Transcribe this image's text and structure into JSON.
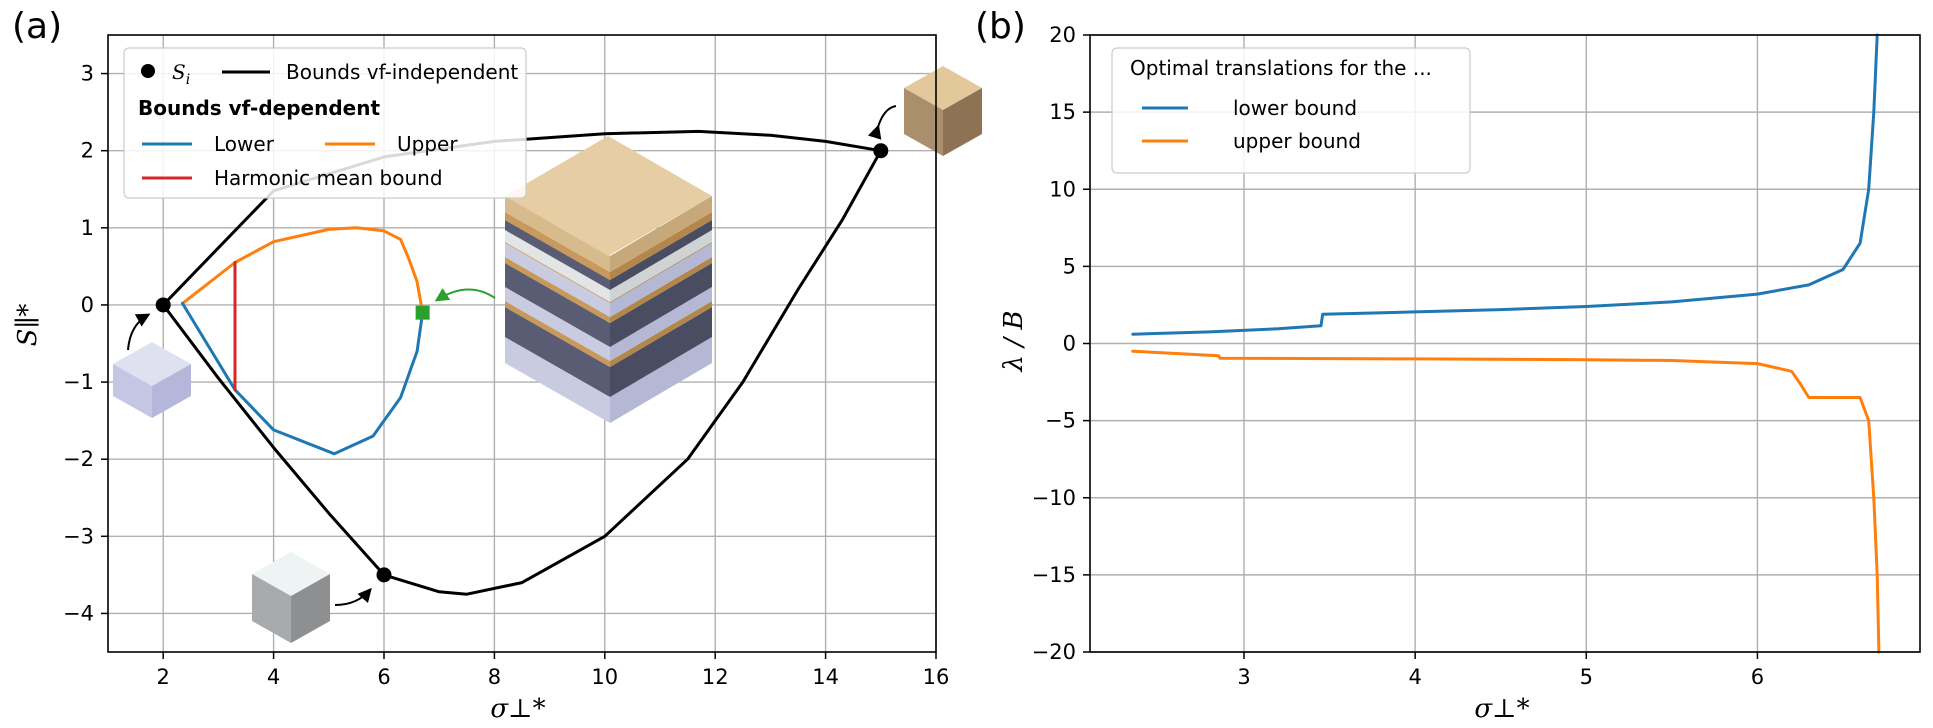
{
  "chart_data": [
    {
      "panel": "(a)",
      "type": "line",
      "xlabel": "σ⊥*",
      "ylabel": "S∥*",
      "xlim": [
        1,
        16
      ],
      "ylim": [
        -4.5,
        3.5
      ],
      "xticks": [
        2,
        4,
        6,
        8,
        10,
        12,
        14,
        16
      ],
      "yticks": [
        3,
        2,
        1,
        0,
        -1,
        -2,
        -3,
        -4
      ],
      "grid": true,
      "legend_position": "top-left",
      "legend": {
        "point_label": "Si",
        "independent_label": "Bounds vf-independent",
        "dependent_heading": "Bounds vf-dependent",
        "lower_label": "Lower",
        "upper_label": "Upper",
        "harmonic_label": "Harmonic mean bound"
      },
      "colors": {
        "independent": "#000000",
        "lower": "#1f77b4",
        "upper": "#ff7f0e",
        "harmonic": "#d62728",
        "marker": "#2ca02c"
      },
      "points": [
        {
          "x": 2,
          "y": 0
        },
        {
          "x": 6,
          "y": -3.5
        },
        {
          "x": 15,
          "y": 2
        }
      ],
      "series": [
        {
          "role": "independent",
          "x": [
            2,
            4,
            6,
            8,
            10,
            11.7,
            13,
            14,
            15
          ],
          "y": [
            0,
            1.48,
            1.92,
            2.12,
            2.22,
            2.25,
            2.2,
            2.12,
            2
          ]
        },
        {
          "role": "independent",
          "x": [
            2,
            3,
            4,
            5,
            6
          ],
          "y": [
            0,
            -0.95,
            -1.85,
            -2.7,
            -3.5
          ]
        },
        {
          "role": "independent",
          "x": [
            6,
            7,
            7.5,
            8.5,
            10,
            11.5,
            12.5,
            13.5,
            14.3,
            15
          ],
          "y": [
            -3.5,
            -3.72,
            -3.75,
            -3.6,
            -3.0,
            -2.0,
            -1.0,
            0.2,
            1.1,
            2
          ]
        },
        {
          "role": "upper",
          "x": [
            2.35,
            3.3,
            4,
            5,
            5.5,
            6,
            6.3,
            6.45,
            6.6,
            6.7
          ],
          "y": [
            0.02,
            0.55,
            0.82,
            0.98,
            1.0,
            0.96,
            0.85,
            0.6,
            0.3,
            -0.1
          ]
        },
        {
          "role": "lower",
          "x": [
            2.35,
            3.3,
            4,
            5.1,
            5.8,
            6.3,
            6.6,
            6.7
          ],
          "y": [
            0.02,
            -1.1,
            -1.62,
            -1.93,
            -1.7,
            -1.2,
            -0.6,
            -0.1
          ]
        },
        {
          "role": "harmonic",
          "x": [
            3.3,
            3.3
          ],
          "y": [
            0.55,
            -1.1
          ]
        }
      ],
      "square_marker": {
        "x": 6.7,
        "y": -0.1
      }
    },
    {
      "panel": "(b)",
      "type": "line",
      "xlabel": "σ⊥*",
      "ylabel": "λ / B",
      "xlim": [
        2.1,
        6.95
      ],
      "ylim": [
        -20,
        20
      ],
      "xticks": [
        3,
        4,
        5,
        6
      ],
      "yticks": [
        20,
        15,
        10,
        5,
        0,
        -5,
        -10,
        -15,
        -20
      ],
      "grid": true,
      "legend_position": "top-left",
      "legend": {
        "title": "Optimal translations for the ...",
        "lower_label": "lower bound",
        "upper_label": "upper bound"
      },
      "series": [
        {
          "name": "lower bound",
          "color": "#1f77b4",
          "x": [
            2.35,
            2.8,
            3.2,
            3.45,
            3.46,
            4,
            4.5,
            5,
            5.5,
            6,
            6.3,
            6.5,
            6.6,
            6.65,
            6.68,
            6.7
          ],
          "y": [
            0.6,
            0.75,
            0.95,
            1.15,
            1.9,
            2.05,
            2.2,
            2.4,
            2.7,
            3.2,
            3.8,
            4.8,
            6.5,
            10,
            15,
            20
          ]
        },
        {
          "name": "upper bound",
          "color": "#ff7f0e",
          "x": [
            2.35,
            2.85,
            2.86,
            4,
            5,
            5.5,
            6,
            6.2,
            6.25,
            6.3,
            6.6,
            6.65,
            6.68,
            6.7,
            6.71
          ],
          "y": [
            -0.5,
            -0.8,
            -0.95,
            -1.0,
            -1.05,
            -1.1,
            -1.3,
            -1.8,
            -2.6,
            -3.5,
            -3.5,
            -5,
            -10,
            -15,
            -20
          ]
        }
      ]
    }
  ]
}
